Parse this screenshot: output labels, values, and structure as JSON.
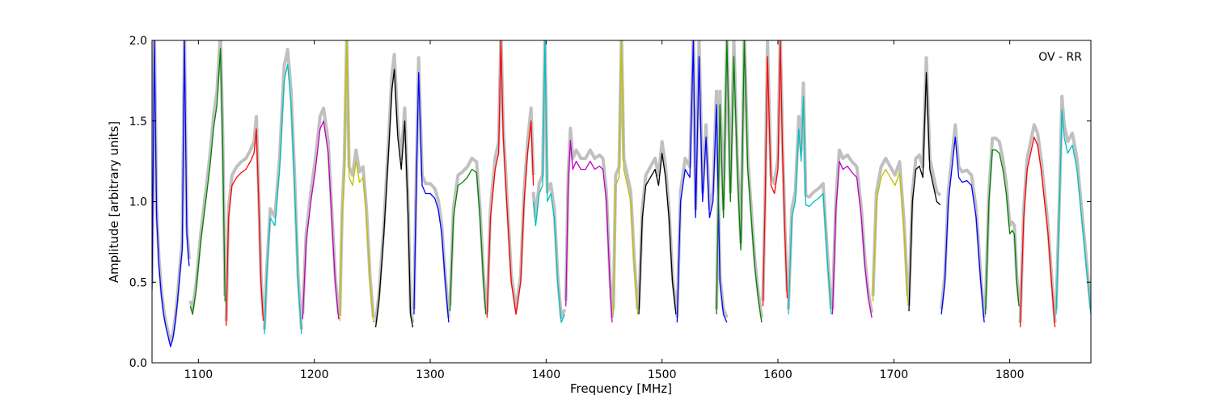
{
  "chart_data": {
    "type": "line",
    "title": "",
    "annotation": "OV - RR",
    "xlabel": "Frequency [MHz]",
    "ylabel": "Amplitude [arbitrary units]",
    "xlim": [
      1060,
      1870
    ],
    "ylim": [
      0.0,
      2.0
    ],
    "x_ticks": [
      {
        "value": 1100,
        "label": "1100"
      },
      {
        "value": 1200,
        "label": "1200"
      },
      {
        "value": 1300,
        "label": "1300"
      },
      {
        "value": 1400,
        "label": "1400"
      },
      {
        "value": 1500,
        "label": "1500"
      },
      {
        "value": 1600,
        "label": "1600"
      },
      {
        "value": 1700,
        "label": "1700"
      },
      {
        "value": 1800,
        "label": "1800"
      }
    ],
    "y_ticks": [
      {
        "value": 0.0,
        "label": "0.0"
      },
      {
        "value": 0.5,
        "label": "0.5"
      },
      {
        "value": 1.0,
        "label": "1.0"
      },
      {
        "value": 1.5,
        "label": "1.5"
      },
      {
        "value": 2.0,
        "label": "2.0"
      }
    ],
    "grid": false,
    "background_color": "#c0c0c0",
    "series": [
      {
        "color": "#0000ff",
        "x": [
          1060,
          1062,
          1064,
          1066,
          1068,
          1070,
          1072,
          1074,
          1076,
          1078,
          1080,
          1082,
          1084,
          1086,
          1088,
          1090,
          1092
        ],
        "y": [
          0.45,
          2.0,
          0.9,
          0.6,
          0.42,
          0.3,
          0.22,
          0.16,
          0.1,
          0.15,
          0.25,
          0.38,
          0.55,
          0.7,
          2.0,
          0.8,
          0.6
        ]
      },
      {
        "color": "#008000",
        "x": [
          1093,
          1095,
          1098,
          1102,
          1106,
          1110,
          1113,
          1116,
          1119,
          1121,
          1123
        ],
        "y": [
          0.35,
          0.3,
          0.45,
          0.75,
          0.98,
          1.22,
          1.45,
          1.6,
          1.95,
          1.35,
          0.38
        ]
      },
      {
        "color": "#ff0000",
        "x": [
          1124,
          1126,
          1129,
          1133,
          1137,
          1141,
          1145,
          1148,
          1150,
          1152,
          1154,
          1156
        ],
        "y": [
          0.23,
          0.9,
          1.1,
          1.15,
          1.18,
          1.2,
          1.25,
          1.3,
          1.45,
          1.0,
          0.5,
          0.26
        ]
      },
      {
        "color": "#00bfbf",
        "x": [
          1157,
          1159,
          1162,
          1166,
          1170,
          1174,
          1177,
          1180,
          1183,
          1186,
          1189
        ],
        "y": [
          0.18,
          0.55,
          0.9,
          0.85,
          1.2,
          1.75,
          1.85,
          1.6,
          1.1,
          0.5,
          0.18
        ]
      },
      {
        "color": "#bf00bf",
        "x": [
          1190,
          1193,
          1197,
          1201,
          1205,
          1208,
          1212,
          1215,
          1218,
          1221
        ],
        "y": [
          0.27,
          0.75,
          1.0,
          1.2,
          1.45,
          1.5,
          1.3,
          0.9,
          0.5,
          0.27
        ]
      },
      {
        "color": "#bfbf00",
        "x": [
          1222,
          1224,
          1226,
          1228,
          1230,
          1233,
          1236,
          1239,
          1242,
          1245,
          1248,
          1251
        ],
        "y": [
          0.26,
          0.9,
          1.2,
          2.0,
          1.15,
          1.1,
          1.25,
          1.12,
          1.15,
          0.9,
          0.5,
          0.25
        ]
      },
      {
        "color": "#000000",
        "x": [
          1253,
          1256,
          1260,
          1264,
          1267,
          1269,
          1272,
          1275,
          1278,
          1281,
          1283,
          1285
        ],
        "y": [
          0.22,
          0.4,
          0.8,
          1.3,
          1.7,
          1.82,
          1.4,
          1.2,
          1.5,
          0.9,
          0.3,
          0.22
        ]
      },
      {
        "color": "#0000ff",
        "x": [
          1286,
          1288,
          1290,
          1293,
          1296,
          1300,
          1304,
          1307,
          1310,
          1313,
          1316
        ],
        "y": [
          0.3,
          1.1,
          1.8,
          1.1,
          1.05,
          1.05,
          1.02,
          0.95,
          0.8,
          0.5,
          0.25
        ]
      },
      {
        "color": "#008000",
        "x": [
          1317,
          1320,
          1324,
          1328,
          1332,
          1336,
          1340,
          1343,
          1346,
          1348
        ],
        "y": [
          0.32,
          0.9,
          1.1,
          1.12,
          1.15,
          1.2,
          1.18,
          0.9,
          0.5,
          0.3
        ]
      },
      {
        "color": "#ff0000",
        "x": [
          1349,
          1352,
          1356,
          1359,
          1361,
          1363,
          1366,
          1370,
          1374,
          1378,
          1381,
          1384,
          1387,
          1389
        ],
        "y": [
          0.28,
          0.9,
          1.2,
          1.3,
          2.0,
          1.4,
          1.0,
          0.5,
          0.3,
          0.5,
          1.0,
          1.3,
          1.5,
          1.1
        ]
      },
      {
        "color": "#00bfbf",
        "x": [
          1389,
          1391,
          1394,
          1397,
          1399,
          1401,
          1404,
          1407,
          1410,
          1413,
          1416
        ],
        "y": [
          1.0,
          0.85,
          1.05,
          1.1,
          2.0,
          1.0,
          1.05,
          0.9,
          0.5,
          0.25,
          0.3
        ]
      },
      {
        "color": "#bf00bf",
        "x": [
          1417,
          1419,
          1421,
          1423,
          1426,
          1430,
          1434,
          1438,
          1442,
          1446,
          1449,
          1452,
          1455,
          1457
        ],
        "y": [
          0.35,
          1.1,
          1.38,
          1.2,
          1.25,
          1.2,
          1.2,
          1.25,
          1.2,
          1.22,
          1.2,
          1.0,
          0.5,
          0.25
        ]
      },
      {
        "color": "#bfbf00",
        "x": [
          1458,
          1460,
          1463,
          1465,
          1467,
          1470,
          1473,
          1476,
          1479
        ],
        "y": [
          0.3,
          1.1,
          1.15,
          2.0,
          1.2,
          1.1,
          1.0,
          0.6,
          0.3
        ]
      },
      {
        "color": "#000000",
        "x": [
          1480,
          1483,
          1486,
          1490,
          1494,
          1497,
          1500,
          1503,
          1506,
          1509,
          1512
        ],
        "y": [
          0.3,
          0.9,
          1.1,
          1.15,
          1.2,
          1.1,
          1.3,
          1.15,
          0.9,
          0.5,
          0.3
        ]
      },
      {
        "color": "#0000ff",
        "x": [
          1513,
          1516,
          1520,
          1524,
          1527,
          1529,
          1532,
          1535,
          1538,
          1541,
          1544,
          1547,
          1550,
          1553,
          1556
        ],
        "y": [
          0.25,
          1.0,
          1.2,
          1.15,
          2.0,
          0.9,
          1.9,
          1.0,
          1.4,
          0.9,
          1.0,
          1.6,
          0.5,
          0.3,
          0.25
        ]
      },
      {
        "color": "#008000",
        "x": [
          1547,
          1550,
          1553,
          1556,
          1559,
          1562,
          1565,
          1568,
          1571,
          1574,
          1577,
          1580,
          1583,
          1586
        ],
        "y": [
          0.3,
          1.6,
          0.9,
          2.0,
          1.0,
          1.9,
          1.2,
          0.7,
          2.0,
          1.2,
          0.9,
          0.6,
          0.4,
          0.25
        ]
      },
      {
        "color": "#ff0000",
        "x": [
          1587,
          1589,
          1591,
          1594,
          1597,
          1600,
          1602,
          1604,
          1606,
          1608
        ],
        "y": [
          0.35,
          1.0,
          1.9,
          1.1,
          1.05,
          1.2,
          2.0,
          1.3,
          0.8,
          0.4
        ]
      },
      {
        "color": "#00bfbf",
        "x": [
          1609,
          1612,
          1615,
          1618,
          1620,
          1622,
          1624,
          1627,
          1631,
          1635,
          1639,
          1643,
          1646
        ],
        "y": [
          0.3,
          0.9,
          1.0,
          1.45,
          1.25,
          1.65,
          0.98,
          0.97,
          1.0,
          1.02,
          1.05,
          0.6,
          0.3
        ]
      },
      {
        "color": "#bf00bf",
        "x": [
          1647,
          1650,
          1653,
          1656,
          1660,
          1664,
          1668,
          1672,
          1675,
          1678,
          1681
        ],
        "y": [
          0.3,
          0.95,
          1.25,
          1.2,
          1.22,
          1.18,
          1.15,
          0.9,
          0.6,
          0.4,
          0.28
        ]
      },
      {
        "color": "#bfbf00",
        "x": [
          1682,
          1685,
          1689,
          1693,
          1697,
          1701,
          1705,
          1709,
          1712
        ],
        "y": [
          0.38,
          1.0,
          1.15,
          1.2,
          1.15,
          1.1,
          1.18,
          0.8,
          0.38
        ]
      },
      {
        "color": "#000000",
        "x": [
          1713,
          1716,
          1719,
          1722,
          1725,
          1728,
          1731,
          1734,
          1737,
          1740
        ],
        "y": [
          0.32,
          1.0,
          1.2,
          1.22,
          1.15,
          1.8,
          1.2,
          1.1,
          1.0,
          0.98
        ]
      },
      {
        "color": "#0000ff",
        "x": [
          1741,
          1744,
          1747,
          1750,
          1753,
          1756,
          1759,
          1763,
          1767,
          1771,
          1775,
          1778
        ],
        "y": [
          0.3,
          0.5,
          1.0,
          1.2,
          1.4,
          1.15,
          1.12,
          1.13,
          1.1,
          0.9,
          0.5,
          0.25
        ]
      },
      {
        "color": "#008000",
        "x": [
          1779,
          1782,
          1785,
          1788,
          1791,
          1794,
          1797,
          1800,
          1802,
          1804,
          1806,
          1808
        ],
        "y": [
          0.3,
          1.0,
          1.32,
          1.32,
          1.3,
          1.2,
          1.05,
          0.8,
          0.82,
          0.8,
          0.5,
          0.35
        ]
      },
      {
        "color": "#ff0000",
        "x": [
          1809,
          1812,
          1815,
          1818,
          1821,
          1824,
          1827,
          1830,
          1833,
          1836,
          1839
        ],
        "y": [
          0.22,
          0.9,
          1.2,
          1.3,
          1.4,
          1.35,
          1.2,
          1.0,
          0.8,
          0.5,
          0.22
        ]
      },
      {
        "color": "#00bfbf",
        "x": [
          1840,
          1843,
          1845,
          1847,
          1850,
          1854,
          1858,
          1862,
          1866,
          1870
        ],
        "y": [
          0.3,
          1.0,
          1.57,
          1.4,
          1.3,
          1.35,
          1.2,
          0.9,
          0.6,
          0.3
        ]
      }
    ]
  }
}
